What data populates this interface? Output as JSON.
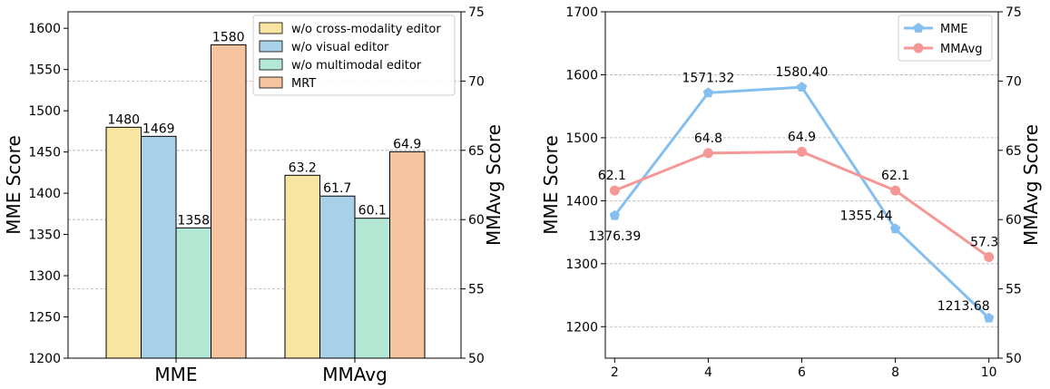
{
  "chart_data": [
    {
      "type": "bar",
      "categories": [
        "MME",
        "MMAvg"
      ],
      "series": [
        {
          "name": "w/o cross-modality editor",
          "color": "#f7e5a1",
          "values": [
            1480,
            63.2
          ],
          "labels": [
            "1480",
            "63.2"
          ]
        },
        {
          "name": "w/o visual editor",
          "color": "#a8d0e6",
          "values": [
            1469,
            61.7
          ],
          "labels": [
            "1469",
            "61.7"
          ]
        },
        {
          "name": "w/o multimodal editor",
          "color": "#b2e8d4",
          "values": [
            1358,
            60.1
          ],
          "labels": [
            "1358",
            "60.1"
          ]
        },
        {
          "name": "MRT",
          "color": "#f6c49e",
          "values": [
            1580,
            64.9
          ],
          "labels": [
            "1580",
            "64.9"
          ]
        }
      ],
      "value_axis_per_category": [
        "left",
        "right"
      ],
      "ylabel_left": "MME Score",
      "ylabel_right": "MMAvg Score",
      "ylim_left": [
        1200,
        1620
      ],
      "ylim_right": [
        50,
        75
      ],
      "left_ticks": [
        1200,
        1250,
        1300,
        1350,
        1400,
        1450,
        1500,
        1550,
        1600
      ],
      "right_ticks": [
        50,
        55,
        60,
        65,
        70,
        75
      ],
      "grid": true,
      "legend_position": "top-right"
    },
    {
      "type": "line",
      "x": [
        2,
        4,
        6,
        8,
        10
      ],
      "series": [
        {
          "name": "MME",
          "axis": "left",
          "color": "#85bff0",
          "marker": "pentagon",
          "values": [
            1376.39,
            1571.32,
            1580.4,
            1355.44,
            1213.68
          ],
          "labels": [
            "1376.39",
            "1571.32",
            "1580.40",
            "1355.44",
            "1213.68"
          ]
        },
        {
          "name": "MMAvg",
          "axis": "right",
          "color": "#f59895",
          "marker": "circle",
          "values": [
            62.1,
            64.8,
            64.9,
            62.1,
            57.3
          ],
          "labels": [
            "62.1",
            "64.8",
            "64.9",
            "62.1",
            "57.3"
          ]
        }
      ],
      "ylabel_left": "MME Score",
      "ylabel_right": "MMAvg Score",
      "xlim": [
        1.8,
        10.2
      ],
      "ylim_left": [
        1150,
        1700
      ],
      "ylim_right": [
        50,
        75
      ],
      "left_ticks": [
        1200,
        1300,
        1400,
        1500,
        1600,
        1700
      ],
      "right_ticks": [
        50,
        55,
        60,
        65,
        70,
        75
      ],
      "grid": true,
      "legend_position": "top-right"
    }
  ]
}
